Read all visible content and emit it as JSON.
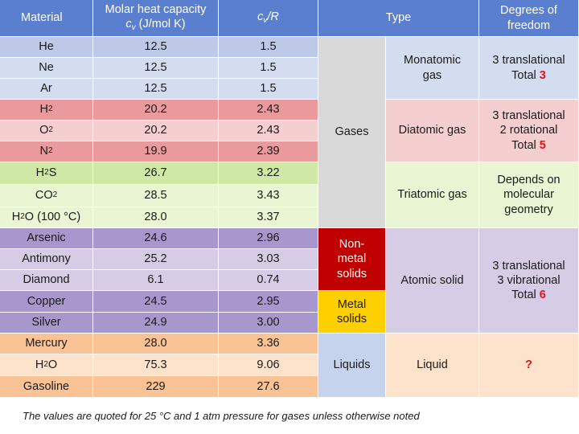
{
  "colors": {
    "header": "#5b7fcf",
    "mono_light": "#d4dcef",
    "mono_dark": "#bdc9e6",
    "diatomic_light": "#f5cfd0",
    "diatomic_dark": "#ea9a9c",
    "triatomic_light": "#eaf5d4",
    "triatomic_dark": "#cfe8a6",
    "solid_light": "#d6cce6",
    "solid_dark": "#a897cc",
    "liquid_light": "#fde3cc",
    "liquid_dark": "#f9c396",
    "gases_group": "#d9d9d9",
    "nonmetal_group": "#c00000",
    "metal_group": "#ffd000",
    "liquid_group": "#c5d3ec",
    "accent_red": "#e0141e"
  },
  "header": {
    "material": "Material",
    "cv_line1": "Molar heat capacity",
    "cv_symbol": "c",
    "cv_sub": "v",
    "cv_unit": " (J/mol K)",
    "ratio_c": "c",
    "ratio_sub": "v",
    "ratio_rest": "/R",
    "type": "Type",
    "dof": "Degrees of freedom"
  },
  "rows": [
    {
      "name": "He",
      "sub": "",
      "after": "",
      "cv": "12.5",
      "ratio": "1.5"
    },
    {
      "name": "Ne",
      "sub": "",
      "after": "",
      "cv": "12.5",
      "ratio": "1.5"
    },
    {
      "name": "Ar",
      "sub": "",
      "after": "",
      "cv": "12.5",
      "ratio": "1.5"
    },
    {
      "name": "H",
      "sub": "2",
      "after": "",
      "cv": "20.2",
      "ratio": "2.43"
    },
    {
      "name": "O",
      "sub": "2",
      "after": "",
      "cv": "20.2",
      "ratio": "2.43"
    },
    {
      "name": "N",
      "sub": "2",
      "after": "",
      "cv": "19.9",
      "ratio": "2.39"
    },
    {
      "name": "H",
      "sub": "2",
      "after": "S",
      "cv": "26.7",
      "ratio": "3.22"
    },
    {
      "name": "CO",
      "sub": "2",
      "after": "",
      "cv": "28.5",
      "ratio": "3.43"
    },
    {
      "name": "H",
      "sub": "2",
      "after": "O (100 °C)",
      "cv": "28.0",
      "ratio": "3.37"
    },
    {
      "name": "Arsenic",
      "sub": "",
      "after": "",
      "cv": "24.6",
      "ratio": "2.96"
    },
    {
      "name": "Antimony",
      "sub": "",
      "after": "",
      "cv": "25.2",
      "ratio": "3.03"
    },
    {
      "name": "Diamond",
      "sub": "",
      "after": "",
      "cv": "6.1",
      "ratio": "0.74"
    },
    {
      "name": "Copper",
      "sub": "",
      "after": "",
      "cv": "24.5",
      "ratio": "2.95"
    },
    {
      "name": "Silver",
      "sub": "",
      "after": "",
      "cv": "24.9",
      "ratio": "3.00"
    },
    {
      "name": "Mercury",
      "sub": "",
      "after": "",
      "cv": "28.0",
      "ratio": "3.36"
    },
    {
      "name": "H",
      "sub": "2",
      "after": "O",
      "cv": "75.3",
      "ratio": "9.06"
    },
    {
      "name": "Gasoline",
      "sub": "",
      "after": "",
      "cv": "229",
      "ratio": "27.6"
    }
  ],
  "groups": {
    "gases": "Gases",
    "nonmetal": "Non-metal solids",
    "metal": "Metal solids",
    "liquids": "Liquids"
  },
  "types": {
    "monatomic": "Monatomic gas",
    "diatomic": "Diatomic gas",
    "triatomic": "Triatomic gas",
    "atomic_solid": "Atomic solid",
    "liquid": "Liquid"
  },
  "dof": {
    "mono_line1": "3 translational",
    "mono_total_label": "Total ",
    "mono_total": "3",
    "di_line1": "3 translational",
    "di_line2": "2 rotational",
    "di_total_label": "Total ",
    "di_total": "5",
    "tri": "Depends on molecular geometry",
    "solid_line1": "3 translational",
    "solid_line2": "3 vibrational",
    "solid_total_label": "Total ",
    "solid_total": "6",
    "liquid": "?"
  },
  "footnote": "The values are quoted for 25 °C and 1 atm pressure for gases unless otherwise noted"
}
